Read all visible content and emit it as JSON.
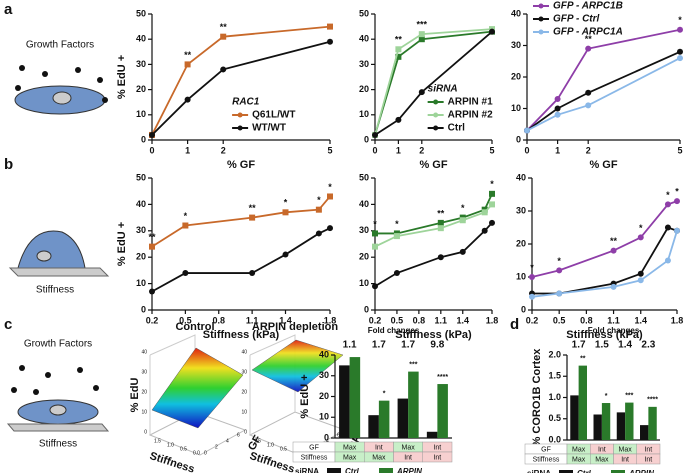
{
  "panels": [
    "a",
    "b",
    "c",
    "d"
  ],
  "illustration_labels": [
    [
      "Growth Factors"
    ],
    [
      "Stiffness"
    ],
    [
      "Growth Factors",
      "Stiffness"
    ]
  ],
  "chart_data": [
    {
      "type": "line",
      "xlabel": "% GF",
      "ylabel": "% EdU +",
      "x": [
        0,
        1,
        2,
        5
      ],
      "xlim": [
        0,
        5
      ],
      "xticks": [
        0,
        1,
        2,
        5
      ],
      "ylim": [
        0,
        50
      ],
      "yticks": [
        0,
        10,
        20,
        30,
        40,
        50
      ],
      "legend": "lower right",
      "legend_title": "RAC1",
      "series": [
        {
          "name": "Q61L/WT",
          "color": "#c8692a",
          "marker": "square",
          "values": [
            2,
            30,
            41,
            45
          ]
        },
        {
          "name": "WT/WT",
          "color": "#111111",
          "marker": "circle",
          "values": [
            2,
            16,
            28,
            39
          ]
        }
      ],
      "stars": [
        null,
        "**",
        "**",
        null
      ]
    },
    {
      "type": "line",
      "xlabel": "% GF",
      "x": [
        0,
        1,
        2,
        5
      ],
      "xlim": [
        0,
        5
      ],
      "xticks": [
        0,
        1,
        2,
        5
      ],
      "ylim": [
        0,
        50
      ],
      "yticks": [
        0,
        10,
        20,
        30,
        40,
        50
      ],
      "legend": "lower right",
      "legend_title": "siRNA",
      "series": [
        {
          "name": "ARPIN #1",
          "color": "#2a7a2a",
          "marker": "square",
          "values": [
            2,
            33,
            40,
            43
          ]
        },
        {
          "name": "ARPIN #2",
          "color": "#9ed49a",
          "marker": "square",
          "values": [
            2,
            36,
            42,
            44
          ]
        },
        {
          "name": "Ctrl",
          "color": "#111111",
          "marker": "circle",
          "values": [
            2,
            8,
            19,
            43
          ]
        }
      ],
      "stars": [
        null,
        "**",
        "***",
        null
      ]
    },
    {
      "type": "line",
      "xlabel": "% GF",
      "x": [
        0,
        1,
        2,
        5
      ],
      "xlim": [
        0,
        5
      ],
      "xticks": [
        0,
        1,
        2,
        5
      ],
      "ylim": [
        0,
        40
      ],
      "yticks": [
        0,
        10,
        20,
        30,
        40
      ],
      "legend": "upper left",
      "series": [
        {
          "name": "GFP - ARPC1B",
          "color": "#8e3ea8",
          "marker": "circle",
          "values": [
            3,
            13,
            29,
            35
          ]
        },
        {
          "name": "GFP - Ctrl",
          "color": "#111111",
          "marker": "circle",
          "values": [
            3,
            10,
            15,
            28
          ]
        },
        {
          "name": "GFP - ARPC1A",
          "color": "#8ab8e8",
          "marker": "circle",
          "values": [
            3,
            8,
            11,
            26
          ]
        }
      ],
      "stars": [
        null,
        null,
        "**",
        "*"
      ]
    },
    {
      "type": "line",
      "xlabel": "Stiffness (kPa)",
      "ylabel": "% EdU +",
      "x": [
        0.2,
        0.5,
        1.1,
        1.4,
        1.7,
        1.8
      ],
      "xlim": [
        0.2,
        1.8
      ],
      "xticks": [
        0.2,
        0.5,
        0.8,
        1.1,
        1.4,
        1.8
      ],
      "ylim": [
        0,
        50
      ],
      "yticks": [
        0,
        10,
        20,
        30,
        40,
        50
      ],
      "series": [
        {
          "name": "RAC1 Q61L/WT",
          "color": "#c8692a",
          "marker": "square",
          "values": [
            24,
            32,
            35,
            37,
            38,
            43
          ]
        },
        {
          "name": "WT/WT",
          "color": "#111111",
          "marker": "circle",
          "values": [
            7,
            14,
            14,
            21,
            29,
            31
          ]
        }
      ],
      "stars": [
        "**",
        "*",
        "**",
        "*",
        "*",
        "*"
      ]
    },
    {
      "type": "line",
      "xlabel": "Stiffness (kPa)",
      "x": [
        0.2,
        0.5,
        1.1,
        1.4,
        1.7,
        1.8
      ],
      "xlim": [
        0.2,
        1.8
      ],
      "xticks": [
        0.2,
        0.5,
        0.8,
        1.1,
        1.4,
        1.8
      ],
      "ylim": [
        0,
        50
      ],
      "yticks": [
        0,
        10,
        20,
        30,
        40,
        50
      ],
      "series": [
        {
          "name": "ARPIN #1",
          "color": "#2a7a2a",
          "marker": "square",
          "values": [
            29,
            29,
            33,
            35,
            38,
            44
          ]
        },
        {
          "name": "ARPIN #2",
          "color": "#9ed49a",
          "marker": "square",
          "values": [
            24,
            28,
            31,
            34,
            37,
            40
          ]
        },
        {
          "name": "Ctrl",
          "color": "#111111",
          "marker": "circle",
          "values": [
            9,
            14,
            20,
            22,
            30,
            33
          ]
        }
      ],
      "stars": [
        "*",
        "*",
        "**",
        "*",
        null,
        "*"
      ]
    },
    {
      "type": "line",
      "xlabel": "Stiffness (kPa)",
      "x": [
        0.2,
        0.5,
        1.1,
        1.4,
        1.7,
        1.8
      ],
      "xlim": [
        0.2,
        1.8
      ],
      "xticks": [
        0.2,
        0.5,
        0.8,
        1.1,
        1.4,
        1.8
      ],
      "ylim": [
        0,
        40
      ],
      "yticks": [
        0,
        10,
        20,
        30,
        40
      ],
      "series": [
        {
          "name": "GFP - ARPC1B",
          "color": "#8e3ea8",
          "marker": "circle",
          "values": [
            10,
            12,
            18,
            22,
            32,
            33
          ]
        },
        {
          "name": "GFP - Ctrl",
          "color": "#111111",
          "marker": "circle",
          "values": [
            5,
            5,
            8,
            11,
            25,
            24
          ]
        },
        {
          "name": "GFP - ARPC1A",
          "color": "#8ab8e8",
          "marker": "circle",
          "values": [
            4,
            5,
            7,
            9,
            15,
            24
          ]
        }
      ],
      "stars": [
        "*",
        "*",
        "**",
        "*",
        "*",
        "*"
      ]
    },
    {
      "type": "surface",
      "title": "Control",
      "zlabel": "% EdU",
      "xlabel": "Stiffness",
      "ylabel": "GF",
      "zticks": [
        0,
        10,
        20,
        30,
        40
      ],
      "xticks": [
        1.5,
        {
          "value": 1,
          "label": "1.0"
        },
        0.5,
        {
          "value": 0,
          "label": "0.0"
        }
      ],
      "yticks": [
        0,
        2,
        4,
        6
      ]
    },
    {
      "type": "surface",
      "title": "ARPIN depletion",
      "zlabel": "% EdU",
      "xlabel": "Stiffness",
      "ylabel": "GF",
      "zticks": [
        0,
        10,
        20,
        30,
        40
      ],
      "xticks": [
        1.5,
        {
          "value": 1,
          "label": "1.0"
        },
        0.5,
        {
          "value": 0,
          "label": "0.0"
        }
      ],
      "yticks": [
        0,
        2,
        4,
        6
      ]
    },
    {
      "type": "bar",
      "ylabel": "% EdU +",
      "ylim": [
        0,
        40
      ],
      "yticks": [
        0,
        10,
        20,
        30,
        40
      ],
      "header": "Fold changes",
      "fold_changes": [
        1.1,
        1.7,
        1.7,
        9.8
      ],
      "legend_title": "siRNA",
      "table": [
        [
          "GF",
          "Max",
          "Int",
          "Max",
          "Int"
        ],
        [
          "Stiffness",
          "Max",
          "Max",
          "Int",
          "Int"
        ]
      ],
      "series": [
        {
          "name": "Ctrl",
          "color": "#111111",
          "values": [
            35,
            11,
            19,
            3
          ],
          "stars": [
            null,
            null,
            null,
            null
          ]
        },
        {
          "name": "ARPIN",
          "color": "#2a7a2a",
          "values": [
            39,
            18,
            32,
            26
          ],
          "stars": [
            null,
            "*",
            "***",
            "****"
          ]
        }
      ]
    },
    {
      "type": "bar",
      "ylabel": "% CORO1B Cortex",
      "ylim": [
        0,
        2
      ],
      "yticks": [
        {
          "value": 0,
          "label": "0.0"
        },
        0.5,
        {
          "value": 1,
          "label": "1.0"
        },
        1.5,
        {
          "value": 2,
          "label": "2.0"
        }
      ],
      "header": "Fold changes",
      "fold_changes": [
        1.7,
        1.5,
        1.4,
        2.3
      ],
      "legend_title": "siRNA",
      "table": [
        [
          "GF",
          "Max",
          "Int",
          "Max",
          "Int"
        ],
        [
          "Stiffness",
          "Max",
          "Max",
          "Int",
          "Int"
        ]
      ],
      "series": [
        {
          "name": "Ctrl",
          "color": "#111111",
          "values": [
            1.05,
            0.6,
            0.65,
            0.35
          ],
          "stars": [
            null,
            null,
            null,
            null
          ]
        },
        {
          "name": "ARPIN",
          "color": "#2a7a2a",
          "values": [
            1.75,
            0.87,
            0.88,
            0.78
          ],
          "stars": [
            "**",
            "*",
            "***",
            "****"
          ]
        }
      ]
    }
  ]
}
